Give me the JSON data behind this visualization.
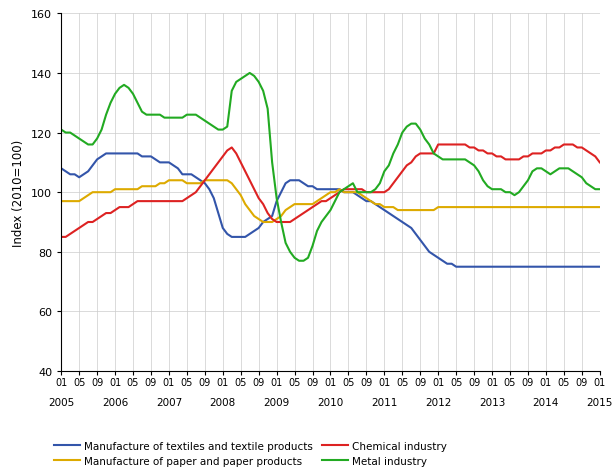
{
  "title": "",
  "ylabel": "Index (2010=100)",
  "ylim": [
    40,
    160
  ],
  "yticks": [
    40,
    60,
    80,
    100,
    120,
    140,
    160
  ],
  "colors": {
    "textiles": "#3355aa",
    "paper": "#ddaa00",
    "chemical": "#dd2222",
    "metal": "#22aa22"
  },
  "legend_labels": [
    "Manufacture of textiles and textile products",
    "Manufacture of paper and paper products",
    "Chemical industry",
    "Metal industry"
  ],
  "textiles": [
    108,
    107,
    106,
    106,
    105,
    106,
    107,
    109,
    111,
    112,
    113,
    113,
    113,
    113,
    113,
    113,
    113,
    113,
    112,
    112,
    112,
    111,
    110,
    110,
    110,
    109,
    108,
    106,
    106,
    106,
    105,
    104,
    103,
    101,
    98,
    93,
    88,
    86,
    85,
    85,
    85,
    85,
    86,
    87,
    88,
    90,
    91,
    92,
    97,
    100,
    103,
    104,
    104,
    104,
    103,
    102,
    102,
    101,
    101,
    101,
    101,
    101,
    101,
    100,
    100,
    100,
    99,
    98,
    97,
    97,
    96,
    95,
    94,
    93,
    92,
    91,
    90,
    89,
    88,
    86,
    84,
    82,
    80,
    79,
    78,
    77,
    76,
    76,
    75,
    75,
    75,
    75,
    75,
    75,
    75,
    75,
    75,
    75,
    75,
    75,
    75,
    75,
    75,
    75,
    75,
    75,
    75,
    75,
    75,
    75,
    75,
    75,
    75,
    75,
    75,
    75,
    75,
    75,
    75,
    75,
    75
  ],
  "paper": [
    97,
    97,
    97,
    97,
    97,
    98,
    99,
    100,
    100,
    100,
    100,
    100,
    101,
    101,
    101,
    101,
    101,
    101,
    102,
    102,
    102,
    102,
    103,
    103,
    104,
    104,
    104,
    104,
    103,
    103,
    103,
    103,
    104,
    104,
    104,
    104,
    104,
    104,
    103,
    101,
    99,
    96,
    94,
    92,
    91,
    90,
    90,
    90,
    91,
    92,
    94,
    95,
    96,
    96,
    96,
    96,
    96,
    97,
    98,
    99,
    100,
    100,
    101,
    100,
    100,
    100,
    100,
    99,
    98,
    97,
    96,
    96,
    95,
    95,
    95,
    94,
    94,
    94,
    94,
    94,
    94,
    94,
    94,
    94,
    95,
    95,
    95,
    95,
    95,
    95,
    95,
    95,
    95,
    95,
    95,
    95,
    95,
    95,
    95,
    95,
    95,
    95,
    95,
    95,
    95,
    95,
    95,
    95,
    95,
    95,
    95,
    95,
    95,
    95,
    95,
    95,
    95,
    95,
    95,
    95,
    95
  ],
  "chemical": [
    85,
    85,
    86,
    87,
    88,
    89,
    90,
    90,
    91,
    92,
    93,
    93,
    94,
    95,
    95,
    95,
    96,
    97,
    97,
    97,
    97,
    97,
    97,
    97,
    97,
    97,
    97,
    97,
    98,
    99,
    100,
    102,
    104,
    106,
    108,
    110,
    112,
    114,
    115,
    113,
    110,
    107,
    104,
    101,
    98,
    96,
    93,
    91,
    90,
    90,
    90,
    90,
    91,
    92,
    93,
    94,
    95,
    96,
    97,
    97,
    98,
    99,
    100,
    101,
    101,
    101,
    101,
    101,
    100,
    100,
    100,
    100,
    100,
    101,
    103,
    105,
    107,
    109,
    110,
    112,
    113,
    113,
    113,
    113,
    116,
    116,
    116,
    116,
    116,
    116,
    116,
    115,
    115,
    114,
    114,
    113,
    113,
    112,
    112,
    111,
    111,
    111,
    111,
    112,
    112,
    113,
    113,
    113,
    114,
    114,
    115,
    115,
    116,
    116,
    116,
    115,
    115,
    114,
    113,
    112,
    110
  ],
  "metal": [
    121,
    120,
    120,
    119,
    118,
    117,
    116,
    116,
    118,
    121,
    126,
    130,
    133,
    135,
    136,
    135,
    133,
    130,
    127,
    126,
    126,
    126,
    126,
    125,
    125,
    125,
    125,
    125,
    126,
    126,
    126,
    125,
    124,
    123,
    122,
    121,
    121,
    122,
    134,
    137,
    138,
    139,
    140,
    139,
    137,
    134,
    128,
    110,
    98,
    90,
    83,
    80,
    78,
    77,
    77,
    78,
    82,
    87,
    90,
    92,
    94,
    97,
    100,
    101,
    102,
    103,
    100,
    100,
    100,
    100,
    101,
    103,
    107,
    109,
    113,
    116,
    120,
    122,
    123,
    123,
    121,
    118,
    116,
    113,
    112,
    111,
    111,
    111,
    111,
    111,
    111,
    110,
    109,
    107,
    104,
    102,
    101,
    101,
    101,
    100,
    100,
    99,
    100,
    102,
    104,
    107,
    108,
    108,
    107,
    106,
    107,
    108,
    108,
    108,
    107,
    106,
    105,
    103,
    102,
    101,
    101
  ],
  "n_points": 121,
  "start_year": 2005,
  "start_month": 1
}
